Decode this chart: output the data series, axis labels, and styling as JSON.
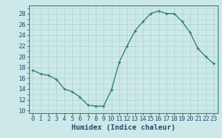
{
  "x": [
    0,
    1,
    2,
    3,
    4,
    5,
    6,
    7,
    8,
    9,
    10,
    11,
    12,
    13,
    14,
    15,
    16,
    17,
    18,
    19,
    20,
    21,
    22,
    23
  ],
  "y": [
    17.5,
    16.8,
    16.5,
    15.8,
    14.0,
    13.5,
    12.5,
    11.0,
    10.8,
    10.8,
    13.8,
    19.0,
    22.0,
    24.8,
    26.5,
    28.0,
    28.5,
    28.0,
    28.0,
    26.5,
    24.5,
    21.5,
    20.0,
    18.7
  ],
  "line_color": "#2e7d6e",
  "marker": "+",
  "markersize": 3,
  "linewidth": 1.0,
  "xlabel": "Humidex (Indice chaleur)",
  "xlim": [
    -0.5,
    23.5
  ],
  "ylim": [
    9.5,
    29.5
  ],
  "yticks": [
    10,
    12,
    14,
    16,
    18,
    20,
    22,
    24,
    26,
    28
  ],
  "xticks": [
    0,
    1,
    2,
    3,
    4,
    5,
    6,
    7,
    8,
    9,
    10,
    11,
    12,
    13,
    14,
    15,
    16,
    17,
    18,
    19,
    20,
    21,
    22,
    23
  ],
  "bg_color": "#cce8e8",
  "grid_color": "#b0d4d4",
  "axis_color": "#2e7d6e",
  "font_color": "#2e4a6e",
  "tick_fontsize": 6.5,
  "label_fontsize": 7.5
}
